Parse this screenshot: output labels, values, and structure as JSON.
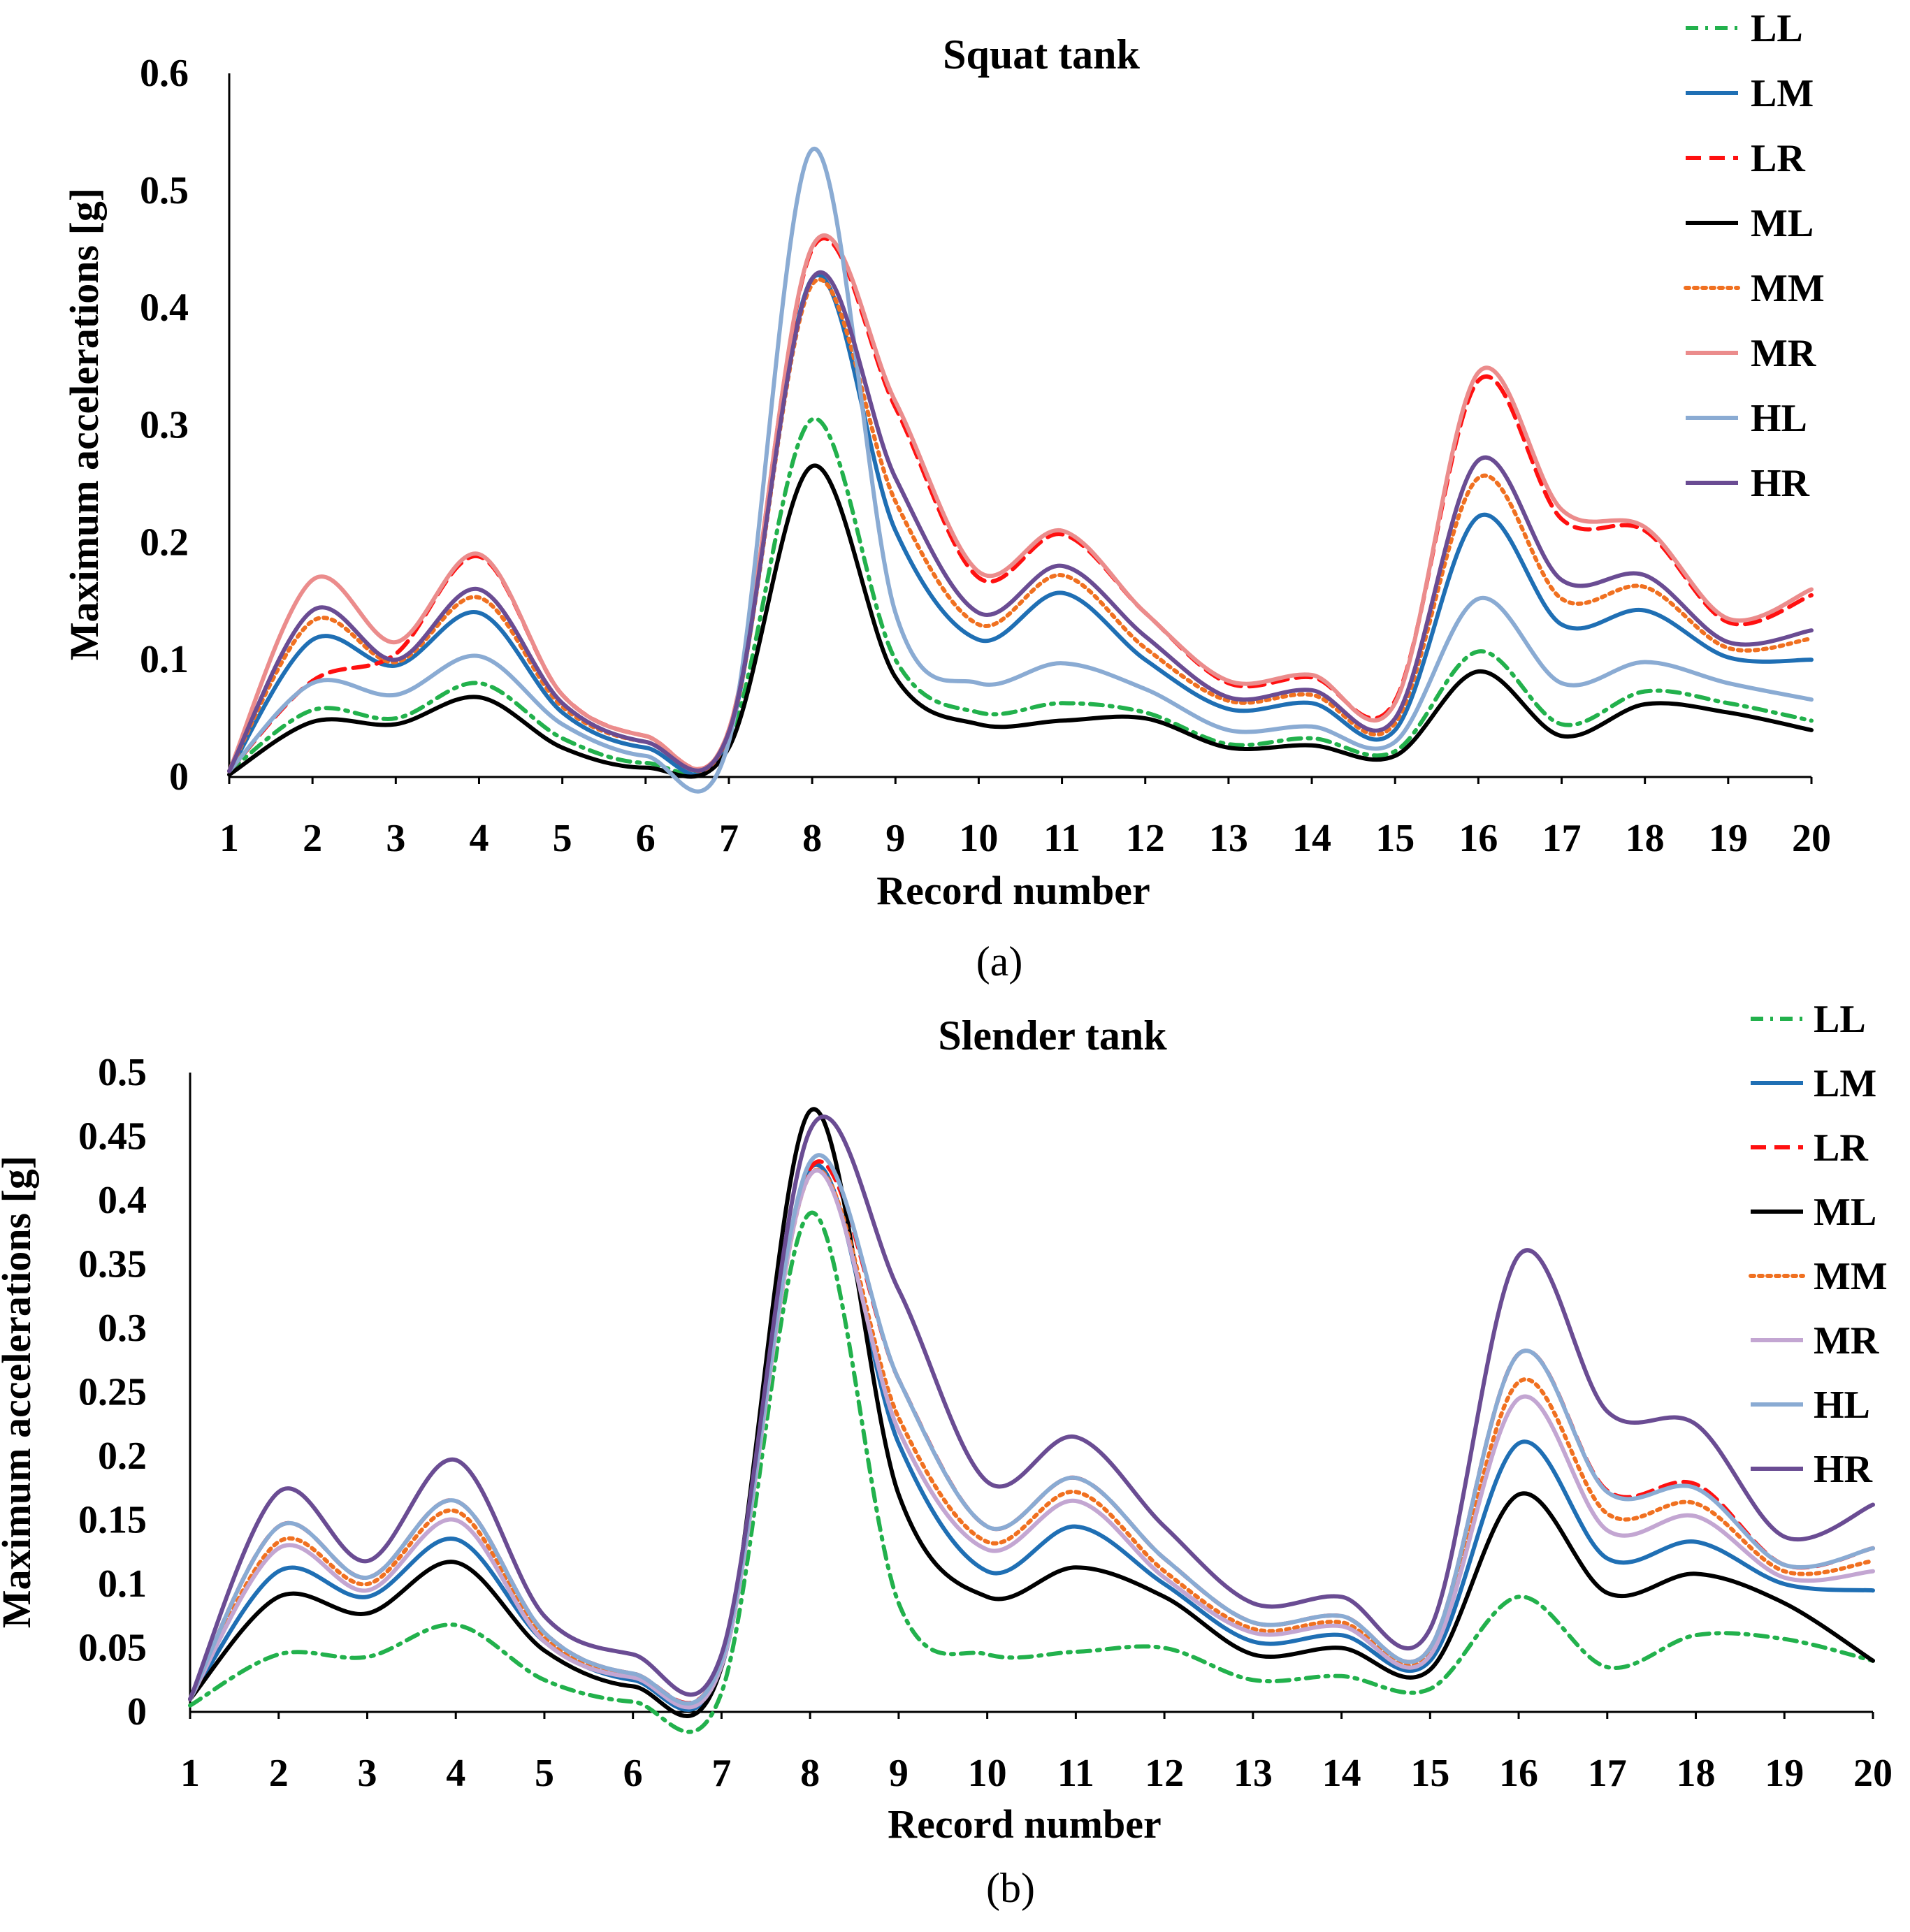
{
  "chart_data": [
    {
      "type": "line",
      "title": "Squat tank",
      "xlabel": "Record number",
      "ylabel": "Maximum accelerations [g]",
      "panel_label": "(a)",
      "x": [
        1,
        2,
        3,
        4,
        5,
        6,
        7,
        8,
        9,
        10,
        11,
        12,
        13,
        14,
        15,
        16,
        17,
        18,
        19,
        20
      ],
      "xlim": [
        1,
        20
      ],
      "ylim": [
        0,
        0.6
      ],
      "yticks": [
        0,
        0.1,
        0.2,
        0.3,
        0.4,
        0.5,
        0.6
      ],
      "ytick_labels": [
        "0",
        "0.1",
        "0.2",
        "0.3",
        "0.4",
        "0.5",
        "0.6"
      ],
      "grid": false,
      "legend": "top-right",
      "series": [
        {
          "name": "LL",
          "color": "#22b14c",
          "dash": "dashdot",
          "values": [
            0.005,
            0.057,
            0.05,
            0.08,
            0.033,
            0.012,
            0.03,
            0.305,
            0.1,
            0.055,
            0.063,
            0.055,
            0.028,
            0.033,
            0.022,
            0.107,
            0.045,
            0.073,
            0.063,
            0.048
          ]
        },
        {
          "name": "LM",
          "color": "#1f6fb4",
          "dash": "solid",
          "values": [
            0.005,
            0.117,
            0.095,
            0.14,
            0.055,
            0.025,
            0.035,
            0.425,
            0.21,
            0.117,
            0.157,
            0.1,
            0.058,
            0.063,
            0.04,
            0.222,
            0.13,
            0.142,
            0.102,
            0.1
          ]
        },
        {
          "name": "LR",
          "color": "#ff1010",
          "dash": "dashed",
          "values": [
            0.005,
            0.082,
            0.105,
            0.188,
            0.07,
            0.035,
            0.04,
            0.45,
            0.315,
            0.17,
            0.207,
            0.14,
            0.08,
            0.085,
            0.065,
            0.338,
            0.22,
            0.21,
            0.132,
            0.155
          ]
        },
        {
          "name": "ML",
          "color": "#000000",
          "dash": "solid",
          "values": [
            0.002,
            0.047,
            0.045,
            0.068,
            0.025,
            0.008,
            0.025,
            0.265,
            0.085,
            0.045,
            0.048,
            0.05,
            0.025,
            0.027,
            0.018,
            0.09,
            0.035,
            0.062,
            0.055,
            0.04
          ]
        },
        {
          "name": "MM",
          "color": "#f07020",
          "dash": "dotted",
          "values": [
            0.005,
            0.133,
            0.098,
            0.153,
            0.06,
            0.03,
            0.037,
            0.42,
            0.235,
            0.13,
            0.172,
            0.11,
            0.065,
            0.07,
            0.046,
            0.255,
            0.152,
            0.162,
            0.11,
            0.118
          ]
        },
        {
          "name": "MR",
          "color": "#eb8c8c",
          "dash": "solid",
          "values": [
            0.005,
            0.168,
            0.115,
            0.19,
            0.07,
            0.035,
            0.04,
            0.452,
            0.32,
            0.175,
            0.21,
            0.14,
            0.082,
            0.087,
            0.063,
            0.345,
            0.228,
            0.213,
            0.135,
            0.16
          ]
        },
        {
          "name": "HL",
          "color": "#8aabd3",
          "dash": "solid",
          "values": [
            0.005,
            0.08,
            0.07,
            0.103,
            0.045,
            0.018,
            0.03,
            0.535,
            0.14,
            0.08,
            0.097,
            0.075,
            0.04,
            0.043,
            0.03,
            0.152,
            0.08,
            0.098,
            0.08,
            0.066
          ]
        },
        {
          "name": "HR",
          "color": "#6a4c93",
          "dash": "solid",
          "values": [
            0.005,
            0.142,
            0.1,
            0.16,
            0.063,
            0.03,
            0.038,
            0.425,
            0.255,
            0.14,
            0.18,
            0.12,
            0.068,
            0.074,
            0.05,
            0.27,
            0.168,
            0.172,
            0.115,
            0.125
          ]
        }
      ]
    },
    {
      "type": "line",
      "title": "Slender tank",
      "xlabel": "Record number",
      "ylabel": "Maximum accelerations [g]",
      "panel_label": "(b)",
      "x": [
        1,
        2,
        3,
        4,
        5,
        6,
        7,
        8,
        9,
        10,
        11,
        12,
        13,
        14,
        15,
        16,
        17,
        18,
        19,
        20
      ],
      "xlim": [
        1,
        20
      ],
      "ylim": [
        0,
        0.5
      ],
      "yticks": [
        0,
        0.05,
        0.1,
        0.15,
        0.2,
        0.25,
        0.3,
        0.35,
        0.4,
        0.45,
        0.5
      ],
      "ytick_labels": [
        "0",
        "0.05",
        "0.1",
        "0.15",
        "0.2",
        "0.25",
        "0.3",
        "0.35",
        "0.4",
        "0.45",
        "0.5"
      ],
      "grid": false,
      "legend": "top-right",
      "series": [
        {
          "name": "LL",
          "color": "#22b14c",
          "dash": "dashdot",
          "values": [
            0.005,
            0.045,
            0.043,
            0.068,
            0.025,
            0.008,
            0.015,
            0.39,
            0.085,
            0.045,
            0.047,
            0.05,
            0.025,
            0.028,
            0.018,
            0.09,
            0.035,
            0.06,
            0.057,
            0.04
          ]
        },
        {
          "name": "LM",
          "color": "#1f6fb4",
          "dash": "solid",
          "values": [
            0.01,
            0.11,
            0.09,
            0.135,
            0.055,
            0.025,
            0.035,
            0.425,
            0.21,
            0.11,
            0.145,
            0.1,
            0.055,
            0.06,
            0.04,
            0.21,
            0.12,
            0.133,
            0.1,
            0.095
          ]
        },
        {
          "name": "LR",
          "color": "#ff1010",
          "dash": "dashed",
          "values": [
            0.01,
            0.145,
            0.105,
            0.165,
            0.062,
            0.03,
            0.04,
            0.425,
            0.26,
            0.145,
            0.183,
            0.12,
            0.07,
            0.075,
            0.05,
            0.28,
            0.173,
            0.178,
            0.115,
            0.128
          ]
        },
        {
          "name": "ML",
          "color": "#000000",
          "dash": "solid",
          "values": [
            0.01,
            0.09,
            0.077,
            0.117,
            0.048,
            0.02,
            0.035,
            0.47,
            0.17,
            0.09,
            0.113,
            0.09,
            0.045,
            0.05,
            0.033,
            0.17,
            0.093,
            0.108,
            0.085,
            0.04
          ]
        },
        {
          "name": "MM",
          "color": "#f07020",
          "dash": "dotted",
          "values": [
            0.01,
            0.133,
            0.1,
            0.157,
            0.058,
            0.028,
            0.038,
            0.42,
            0.23,
            0.133,
            0.172,
            0.11,
            0.065,
            0.07,
            0.046,
            0.258,
            0.155,
            0.163,
            0.11,
            0.118
          ]
        },
        {
          "name": "MR",
          "color": "#c3a6d2",
          "dash": "solid",
          "values": [
            0.01,
            0.128,
            0.095,
            0.15,
            0.055,
            0.027,
            0.036,
            0.42,
            0.22,
            0.127,
            0.165,
            0.105,
            0.062,
            0.067,
            0.044,
            0.245,
            0.142,
            0.153,
            0.105,
            0.11
          ]
        },
        {
          "name": "HL",
          "color": "#8aabd3",
          "dash": "solid",
          "values": [
            0.01,
            0.145,
            0.105,
            0.165,
            0.062,
            0.03,
            0.04,
            0.43,
            0.26,
            0.145,
            0.183,
            0.12,
            0.07,
            0.075,
            0.05,
            0.28,
            0.172,
            0.175,
            0.115,
            0.128
          ]
        },
        {
          "name": "HR",
          "color": "#6a4c93",
          "dash": "solid",
          "values": [
            0.01,
            0.172,
            0.118,
            0.197,
            0.075,
            0.045,
            0.045,
            0.455,
            0.33,
            0.18,
            0.215,
            0.145,
            0.085,
            0.09,
            0.065,
            0.357,
            0.235,
            0.225,
            0.137,
            0.162
          ]
        }
      ]
    }
  ]
}
